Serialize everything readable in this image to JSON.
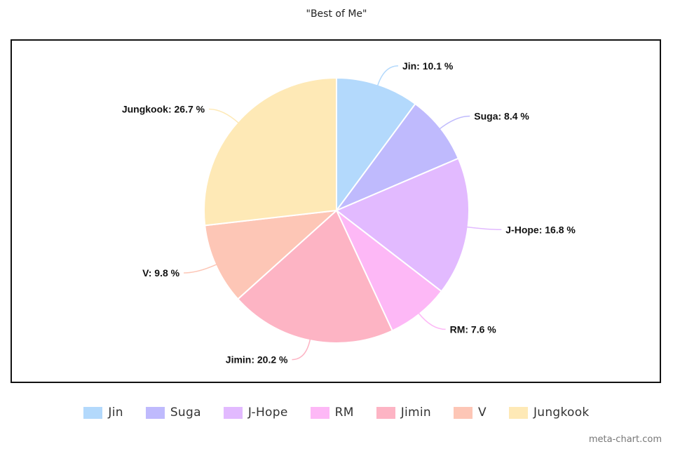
{
  "chart_data": {
    "type": "pie",
    "title": "\"Best of Me\"",
    "slices": [
      {
        "label": "Jin",
        "value": 10.1,
        "color": "#b3d9fc"
      },
      {
        "label": "Suga",
        "value": 8.4,
        "color": "#bfbafd"
      },
      {
        "label": "J-Hope",
        "value": 16.8,
        "color": "#e2baff"
      },
      {
        "label": "RM",
        "value": 7.6,
        "color": "#fdb8f6"
      },
      {
        "label": "Jimin",
        "value": 20.2,
        "color": "#fdb4c4"
      },
      {
        "label": "V",
        "value": 9.8,
        "color": "#fdc6b6"
      },
      {
        "label": "Jungkook",
        "value": 26.7,
        "color": "#fee9b6"
      }
    ],
    "label_suffix": " %",
    "legend_position": "bottom"
  },
  "watermark": "meta-chart.com"
}
